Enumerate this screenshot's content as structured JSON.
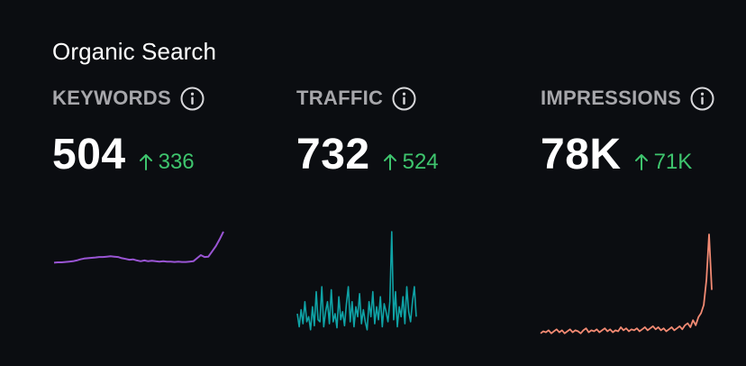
{
  "card": {
    "title": "Organic Search"
  },
  "metrics": [
    {
      "label": "KEYWORDS",
      "value": "504",
      "delta": "336",
      "delta_direction": "up",
      "info_icon": "info-icon",
      "spark_color": "#9a55d4",
      "spark": [
        0.18,
        0.19,
        0.19,
        0.2,
        0.21,
        0.22,
        0.24,
        0.27,
        0.29,
        0.3,
        0.31,
        0.32,
        0.33,
        0.33,
        0.34,
        0.35,
        0.34,
        0.33,
        0.3,
        0.28,
        0.26,
        0.27,
        0.24,
        0.22,
        0.24,
        0.22,
        0.23,
        0.22,
        0.21,
        0.22,
        0.21,
        0.21,
        0.2,
        0.21,
        0.2,
        0.2,
        0.21,
        0.22,
        0.3,
        0.38,
        0.33,
        0.34,
        0.48,
        0.62,
        0.8,
        1.0
      ]
    },
    {
      "label": "TRAFFIC",
      "value": "732",
      "delta": "524",
      "delta_direction": "up",
      "info_icon": "info-icon",
      "spark_color": "#0fa3a6",
      "spark": [
        0.18,
        0.05,
        0.22,
        0.08,
        0.3,
        0.1,
        0.15,
        0.02,
        0.25,
        0.06,
        0.4,
        0.12,
        0.1,
        0.45,
        0.05,
        0.2,
        0.3,
        0.08,
        0.42,
        0.1,
        0.18,
        0.04,
        0.35,
        0.12,
        0.2,
        0.06,
        0.28,
        0.45,
        0.1,
        0.3,
        0.05,
        0.25,
        0.15,
        0.38,
        0.08,
        0.22,
        0.1,
        0.02,
        0.3,
        0.15,
        0.4,
        0.08,
        0.25,
        0.12,
        0.35,
        0.05,
        0.28,
        0.2,
        0.1,
        0.3,
        1.0,
        0.12,
        0.4,
        0.05,
        0.25,
        0.15,
        0.35,
        0.08,
        0.45,
        0.2,
        0.1,
        0.3,
        0.45,
        0.15
      ]
    },
    {
      "label": "IMPRESSIONS",
      "value": "78K",
      "delta": "71K",
      "delta_direction": "up",
      "info_icon": "info-icon",
      "spark_color": "#f28a73",
      "spark": [
        0.02,
        0.04,
        0.03,
        0.05,
        0.02,
        0.04,
        0.06,
        0.03,
        0.05,
        0.02,
        0.04,
        0.06,
        0.03,
        0.05,
        0.04,
        0.02,
        0.05,
        0.07,
        0.03,
        0.05,
        0.04,
        0.06,
        0.03,
        0.05,
        0.07,
        0.04,
        0.06,
        0.03,
        0.05,
        0.04,
        0.08,
        0.05,
        0.07,
        0.04,
        0.06,
        0.05,
        0.07,
        0.04,
        0.06,
        0.08,
        0.05,
        0.07,
        0.09,
        0.06,
        0.08,
        0.05,
        0.07,
        0.04,
        0.06,
        0.08,
        0.05,
        0.07,
        0.09,
        0.06,
        0.1,
        0.12,
        0.08,
        0.15,
        0.1,
        0.18,
        0.22,
        0.3,
        0.55,
        1.0,
        0.45
      ]
    }
  ]
}
